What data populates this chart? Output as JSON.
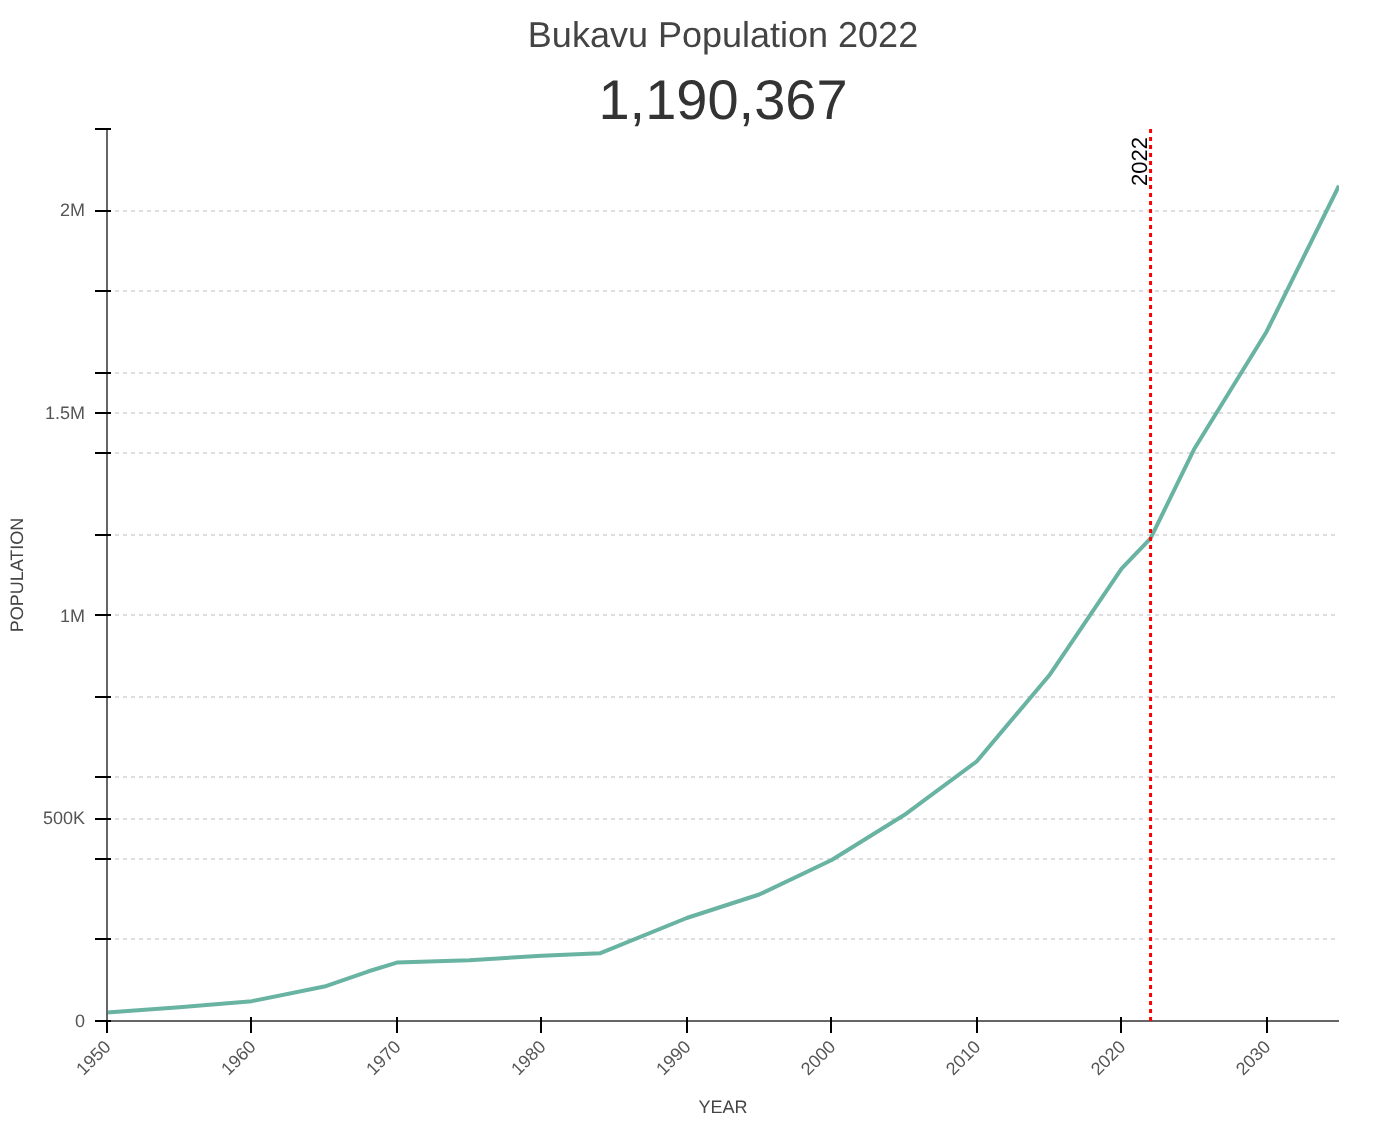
{
  "chart_data": {
    "type": "line",
    "title": "Bukavu Population 2022",
    "subtitle": "1,190,367",
    "xlabel": "YEAR",
    "ylabel": "POPULATION",
    "x": [
      1950,
      1955,
      1960,
      1965,
      1968,
      1970,
      1975,
      1980,
      1984,
      1990,
      1995,
      2000,
      2005,
      2010,
      2015,
      2020,
      2022,
      2025,
      2030,
      2035
    ],
    "series": [
      {
        "color": "#69b3a2",
        "values": [
          21000,
          34000,
          49000,
          85000,
          122000,
          144000,
          150000,
          161000,
          167000,
          254000,
          312000,
          397000,
          508000,
          640000,
          852000,
          1116000,
          1190367,
          1410000,
          1700000,
          2060000
        ]
      }
    ],
    "xlim": [
      1950,
      2035
    ],
    "xticks": [
      1950,
      1960,
      1970,
      1980,
      1990,
      2000,
      2010,
      2020,
      2030
    ],
    "ylim": [
      0,
      2200000
    ],
    "yticks": [
      0,
      {
        "value": 200000,
        "label": null
      },
      {
        "value": 400000,
        "label": null
      },
      {
        "value": 500000,
        "label": "500K"
      },
      {
        "value": 600000,
        "label": null
      },
      {
        "value": 800000,
        "label": null
      },
      {
        "value": 1000000,
        "label": "1M"
      },
      {
        "value": 1200000,
        "label": null
      },
      {
        "value": 1400000,
        "label": null
      },
      {
        "value": 1500000,
        "label": "1.5M"
      },
      {
        "value": 1600000,
        "label": null
      },
      {
        "value": 1800000,
        "label": null
      },
      {
        "value": 2000000,
        "label": "2M"
      },
      {
        "value": 2200000,
        "label": null
      }
    ],
    "grid": "y",
    "ref_lines": [
      {
        "axis": "x",
        "value": 2022,
        "label": "2022",
        "color": "#ff0000",
        "line_style": "dotted"
      }
    ]
  }
}
